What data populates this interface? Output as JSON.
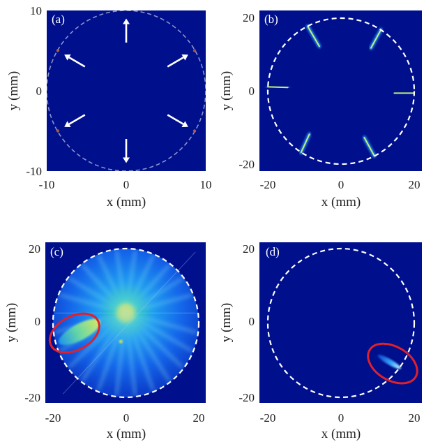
{
  "chart_data": [
    {
      "type": "heatmap",
      "panel_label": "(a)",
      "xlabel": "x (mm)",
      "ylabel": "y (mm)",
      "xlim": [
        -10,
        10
      ],
      "ylim": [
        -10,
        10
      ],
      "xticks": [
        "-10",
        "0",
        "10"
      ],
      "yticks": [
        "10",
        "0",
        "-10"
      ],
      "circle_radius": 10,
      "circle_style": "dashed",
      "arrow_angles_deg": [
        90,
        30,
        -30,
        -90,
        -150,
        150
      ],
      "hotspots": [
        {
          "x": -8.6,
          "y": 5.0,
          "intensity": 0.15
        },
        {
          "x": 8.6,
          "y": 5.0,
          "intensity": 0.15
        },
        {
          "x": -8.6,
          "y": -5.0,
          "intensity": 0.15
        },
        {
          "x": 8.6,
          "y": -5.0,
          "intensity": 0.15
        }
      ]
    },
    {
      "type": "heatmap",
      "panel_label": "(b)",
      "xlabel": "x (mm)",
      "ylabel": "y (mm)",
      "xlim": [
        -22,
        22
      ],
      "ylim": [
        -22,
        22
      ],
      "xticks": [
        "-20",
        "0",
        "20"
      ],
      "yticks": [
        "20",
        "0",
        "-20"
      ],
      "circle_radius": 22,
      "circle_style": "dashed",
      "streaks": [
        {
          "x1": -10,
          "y1": 19.5,
          "x2": -6.5,
          "y2": 13.5,
          "intensity": 0.6
        },
        {
          "x1": 12,
          "y1": 18.5,
          "x2": 9,
          "y2": 13,
          "intensity": 0.6
        },
        {
          "x1": -22,
          "y1": 1.3,
          "x2": -16,
          "y2": 1.1,
          "intensity": 0.7
        },
        {
          "x1": 16,
          "y1": -0.6,
          "x2": 22,
          "y2": -0.6,
          "intensity": 0.7
        },
        {
          "x1": -9.5,
          "y1": -13,
          "x2": -12,
          "y2": -18.5,
          "intensity": 0.6
        },
        {
          "x1": 7,
          "y1": -14,
          "x2": 10,
          "y2": -19.5,
          "intensity": 0.6
        }
      ]
    },
    {
      "type": "heatmap",
      "panel_label": "(c)",
      "xlabel": "x (mm)",
      "ylabel": "y (mm)",
      "xlim": [
        -22,
        22
      ],
      "ylim": [
        -22,
        22
      ],
      "xticks": [
        "-20",
        "0",
        "20"
      ],
      "yticks": [
        "20",
        "0",
        "-20"
      ],
      "circle_radius": 22,
      "circle_style": "dashed",
      "bright_center": {
        "x": 0,
        "y": 3
      },
      "highlight": {
        "cx": -15.5,
        "cy": -3,
        "rx": 8,
        "ry": 5,
        "rotation_deg": -28,
        "color": "#e0202a"
      }
    },
    {
      "type": "heatmap",
      "panel_label": "(d)",
      "xlabel": "x (mm)",
      "ylabel": "y (mm)",
      "xlim": [
        -22,
        22
      ],
      "ylim": [
        -22,
        22
      ],
      "xticks": [
        "-20",
        "0",
        "20"
      ],
      "yticks": [
        "20",
        "0",
        "-20"
      ],
      "circle_radius": 22,
      "circle_style": "dashed",
      "streaks": [
        {
          "x1": 11,
          "y1": -9.5,
          "x2": 18,
          "y2": -13.5,
          "intensity": 0.55
        }
      ],
      "highlight": {
        "cx": 15.5,
        "cy": -12,
        "rx": 8,
        "ry": 5,
        "rotation_deg": 30,
        "color": "#e0202a"
      }
    }
  ],
  "colors": {
    "background": "#000f8c",
    "circle": "#ffffff",
    "arrow": "#ffffff",
    "highlight": "#e0202a"
  }
}
